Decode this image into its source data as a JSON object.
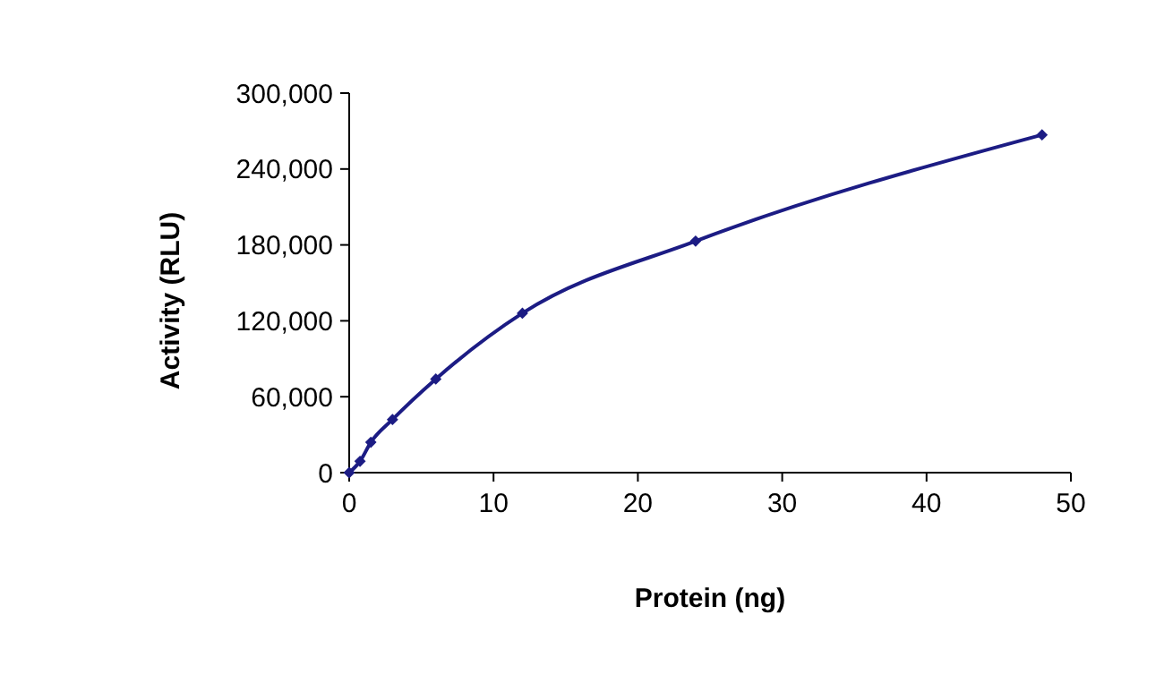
{
  "chart_data": {
    "type": "line",
    "xlabel": "Protein (ng)",
    "ylabel": "Activity (RLU)",
    "x": [
      0,
      0.75,
      1.5,
      3,
      6,
      12,
      24,
      48
    ],
    "series": [
      {
        "color": "#1c1c84",
        "values": [
          0,
          9000,
          24000,
          42000,
          74000,
          126000,
          183000,
          267000
        ]
      }
    ],
    "xlim": [
      0,
      50
    ],
    "xticks": [
      0,
      10,
      20,
      30,
      40,
      50
    ],
    "ylim": [
      0,
      300000
    ],
    "yticks": [
      {
        "value": 0,
        "label": "0"
      },
      {
        "value": 60000,
        "label": "60,000"
      },
      {
        "value": 120000,
        "label": "120,000"
      },
      {
        "value": 180000,
        "label": "180,000"
      },
      {
        "value": 240000,
        "label": "240,000"
      },
      {
        "value": 300000,
        "label": "300,000"
      }
    ],
    "grid": false,
    "marker": "diamond",
    "line_style": "solid"
  }
}
